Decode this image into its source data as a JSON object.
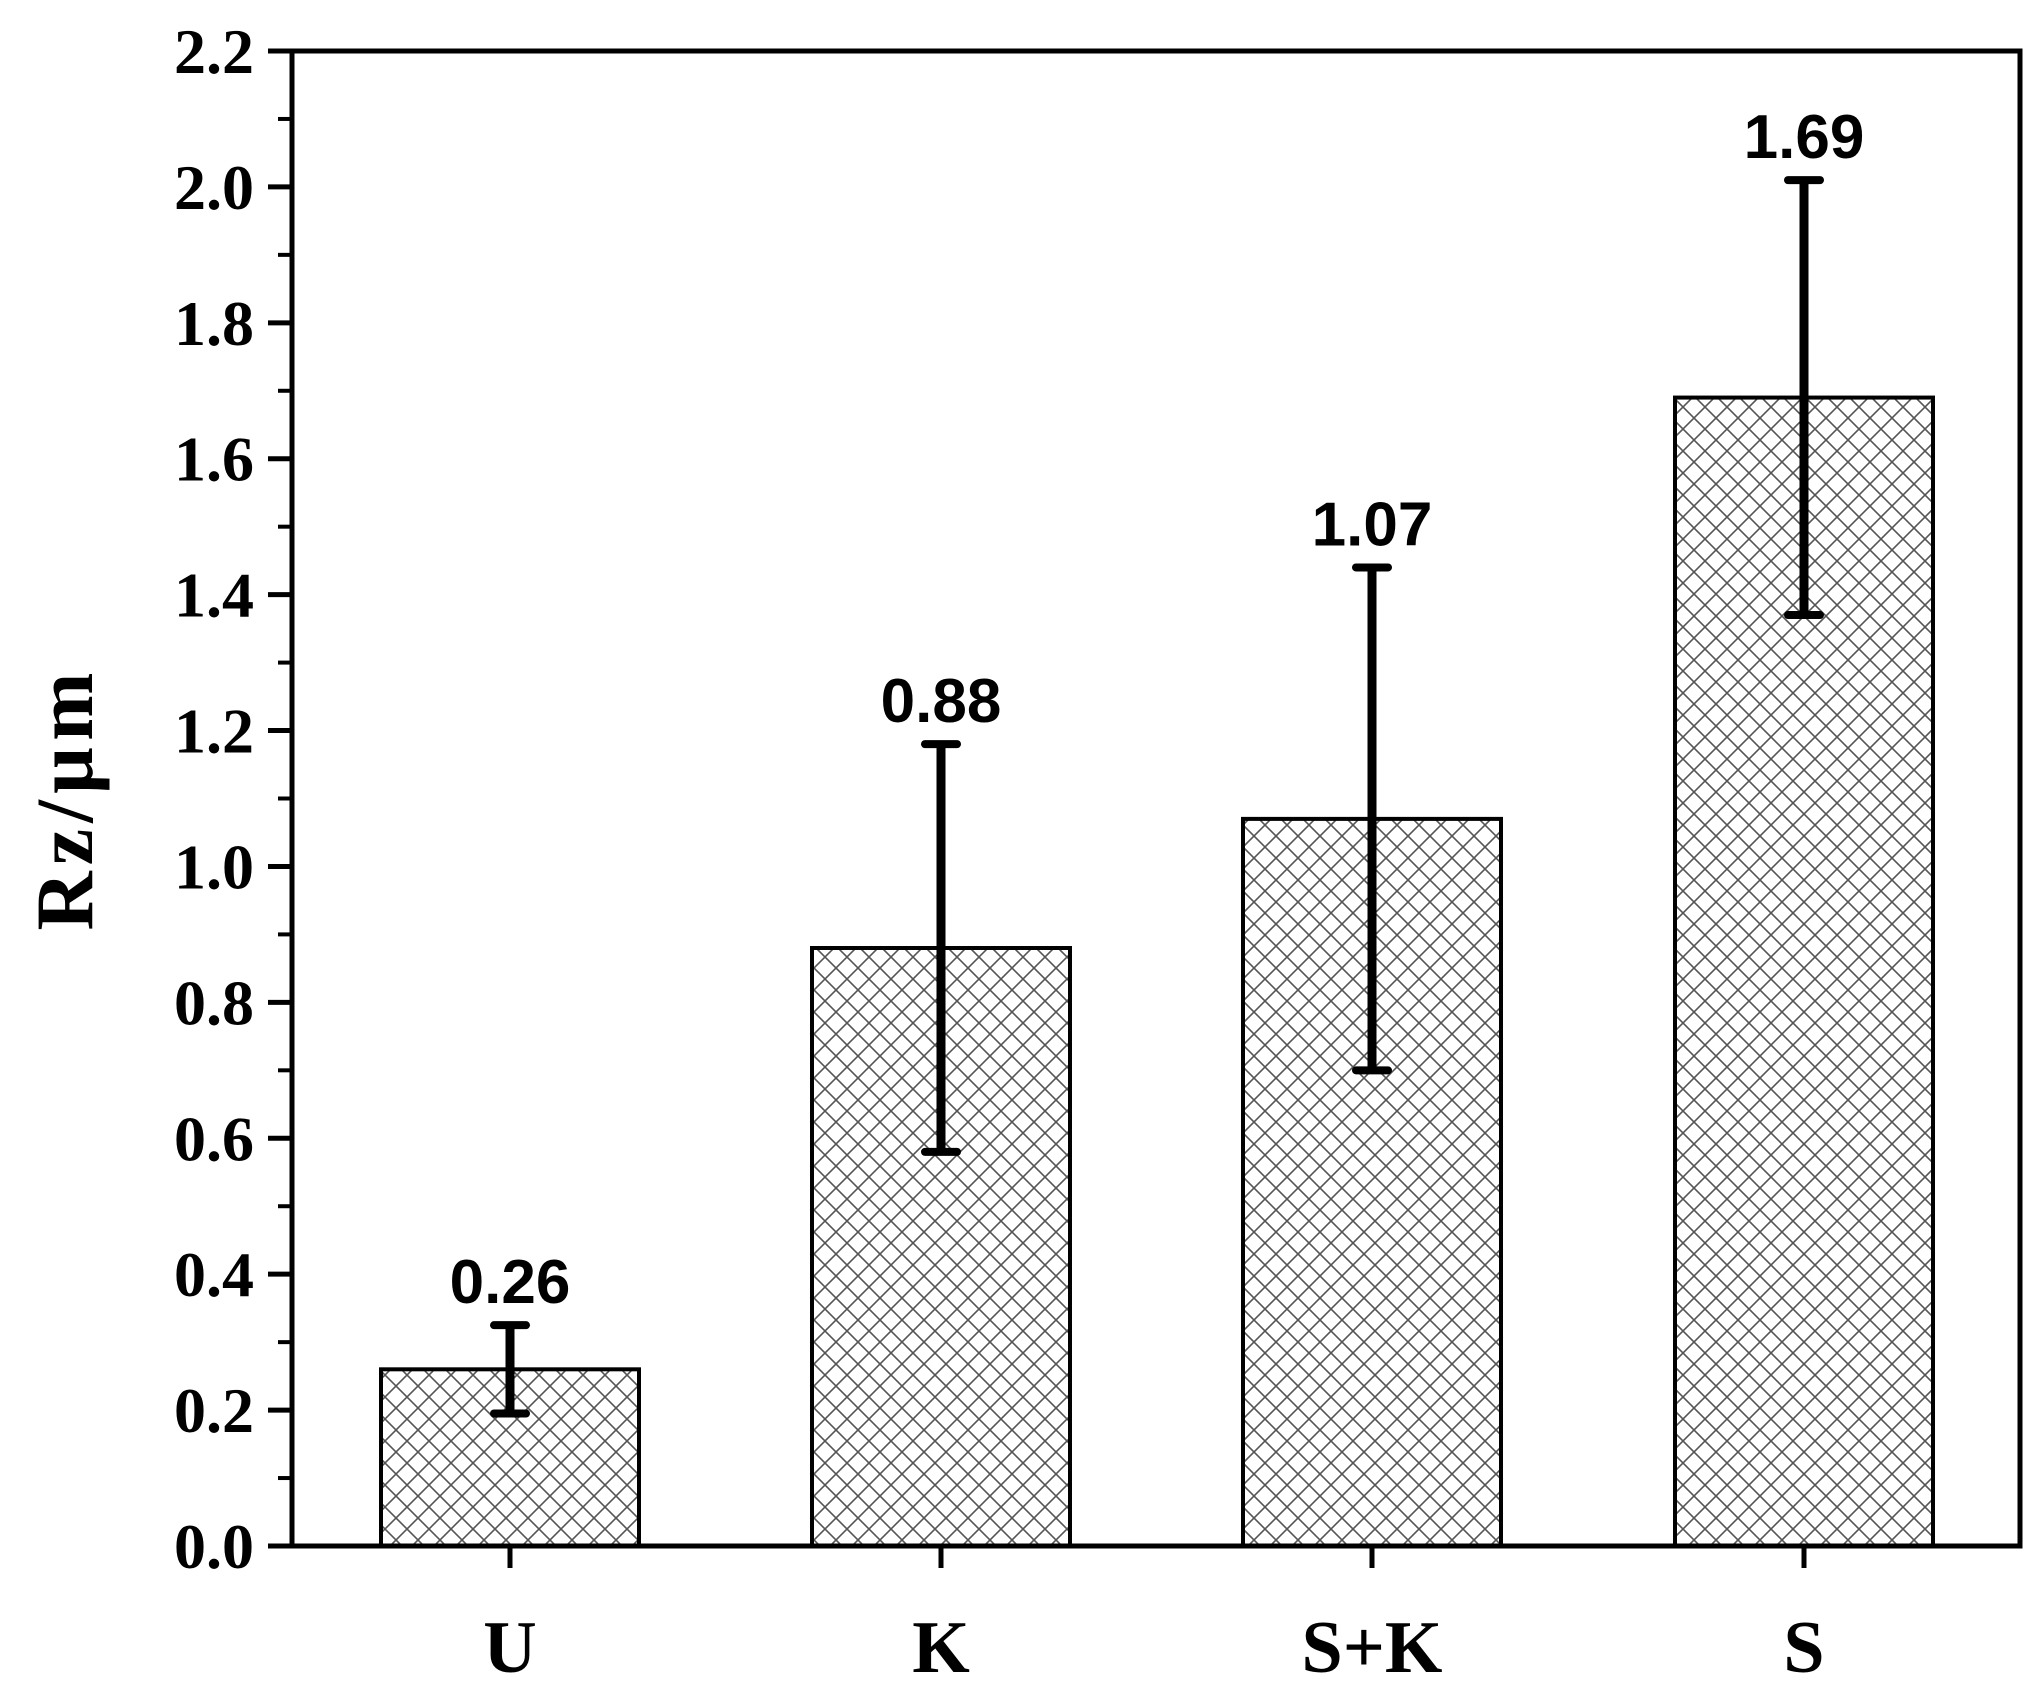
{
  "chart_data": {
    "type": "bar",
    "categories": [
      "U",
      "K",
      "S+K",
      "S"
    ],
    "values": [
      0.26,
      0.88,
      1.07,
      1.69
    ],
    "error_low": [
      0.195,
      0.58,
      0.7,
      1.37
    ],
    "error_high": [
      0.325,
      1.18,
      1.44,
      2.01
    ],
    "data_labels": [
      "0.26",
      "0.88",
      "1.07",
      "1.69"
    ],
    "title": "",
    "xlabel": "",
    "ylabel": "Rz/µm",
    "ylim": [
      0.0,
      2.2
    ],
    "yticks": [
      "0.0",
      "0.2",
      "0.4",
      "0.6",
      "0.8",
      "1.0",
      "1.2",
      "1.4",
      "1.6",
      "1.8",
      "2.0",
      "2.2"
    ],
    "grid": false,
    "legend": "none",
    "bar_pattern": "crosshatch",
    "bar_fill": "#ffffff",
    "bar_stroke": "#000000"
  }
}
